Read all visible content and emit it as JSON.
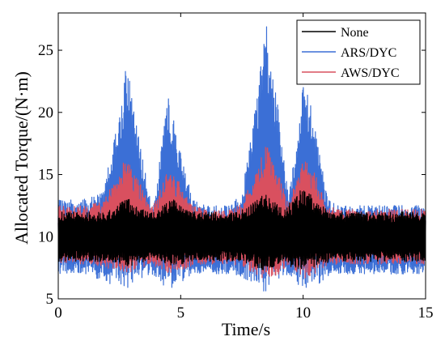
{
  "chart_data": {
    "type": "line",
    "xlabel": "Time/s",
    "ylabel": "Allocated Torque/(N·m)",
    "xlim": [
      0,
      15
    ],
    "ylim": [
      5,
      28
    ],
    "xticks": [
      "0",
      "5",
      "10",
      "15"
    ],
    "yticks": [
      "5",
      "10",
      "15",
      "20",
      "25"
    ],
    "legend_position": "top-right",
    "series": [
      {
        "name": "None",
        "color": "#000000",
        "x": [
          0,
          1,
          2,
          2.4,
          2.8,
          3.2,
          3.6,
          4,
          4.4,
          4.8,
          5.2,
          5.6,
          6,
          7,
          7.6,
          8,
          8.4,
          8.8,
          9.2,
          9.6,
          10,
          10.4,
          10.8,
          11.2,
          12,
          13,
          14,
          15
        ],
        "upper": [
          12,
          12,
          12,
          12.5,
          13.2,
          12.5,
          12,
          12,
          12.8,
          13,
          12.2,
          12,
          12,
          12,
          12.2,
          12.8,
          13.5,
          12.8,
          12.3,
          13,
          14,
          13.2,
          12.5,
          12,
          12,
          12,
          12,
          12
        ],
        "lower": [
          8,
          8,
          8,
          7.8,
          7.5,
          7.8,
          8,
          8,
          7.8,
          7.6,
          7.9,
          8,
          8,
          8,
          7.9,
          7.6,
          7.2,
          7.5,
          7.8,
          7.5,
          7.2,
          7.5,
          7.8,
          8,
          8,
          8,
          8,
          8
        ]
      },
      {
        "name": "ARS/DYC",
        "color": "#3b6fd6",
        "x": [
          0,
          1,
          1.8,
          2.3,
          2.8,
          3.3,
          3.8,
          4.0,
          4.5,
          5.0,
          5.5,
          6,
          7,
          7.5,
          8,
          8.5,
          9.0,
          9.4,
          9.7,
          10.0,
          10.5,
          11,
          11.4,
          12,
          13,
          14,
          15
        ],
        "upper": [
          13,
          13,
          13.5,
          18,
          24,
          18,
          12.5,
          14,
          21.5,
          17,
          13,
          12.5,
          12.5,
          13.5,
          20,
          27,
          20,
          13.5,
          17,
          23,
          19,
          13,
          12.5,
          12.5,
          12.5,
          12.5,
          12.5
        ],
        "lower": [
          7,
          7,
          6.5,
          6,
          5.8,
          6.5,
          7,
          6.5,
          5.8,
          6.2,
          7,
          7,
          7,
          6.8,
          6,
          5.5,
          6.2,
          7,
          6.5,
          5.5,
          6,
          6.8,
          7,
          7,
          7,
          7,
          7
        ]
      },
      {
        "name": "AWS/DYC",
        "color": "#d9505f",
        "x": [
          0,
          1,
          1.8,
          2.3,
          2.8,
          3.3,
          3.8,
          4.0,
          4.5,
          5.0,
          5.5,
          6,
          7,
          7.5,
          8,
          8.5,
          9.0,
          9.4,
          9.7,
          10.0,
          10.5,
          11,
          11.4,
          12,
          13,
          14,
          15
        ],
        "upper": [
          12.5,
          12.5,
          12.8,
          14.5,
          16.5,
          14.5,
          12.3,
          13,
          15.8,
          14.2,
          12.5,
          12.2,
          12.2,
          12.8,
          15,
          17.5,
          15,
          12.8,
          14.5,
          16.5,
          15,
          12.5,
          12.2,
          12.2,
          12.2,
          12.2,
          12.2
        ],
        "lower": [
          7.8,
          7.8,
          7.6,
          7.3,
          7,
          7.3,
          7.8,
          7.5,
          7,
          7.2,
          7.7,
          7.8,
          7.8,
          7.6,
          7,
          6.5,
          7,
          7.6,
          7.2,
          6.6,
          7,
          7.6,
          7.8,
          7.8,
          7.8,
          7.8,
          7.8
        ]
      }
    ]
  }
}
